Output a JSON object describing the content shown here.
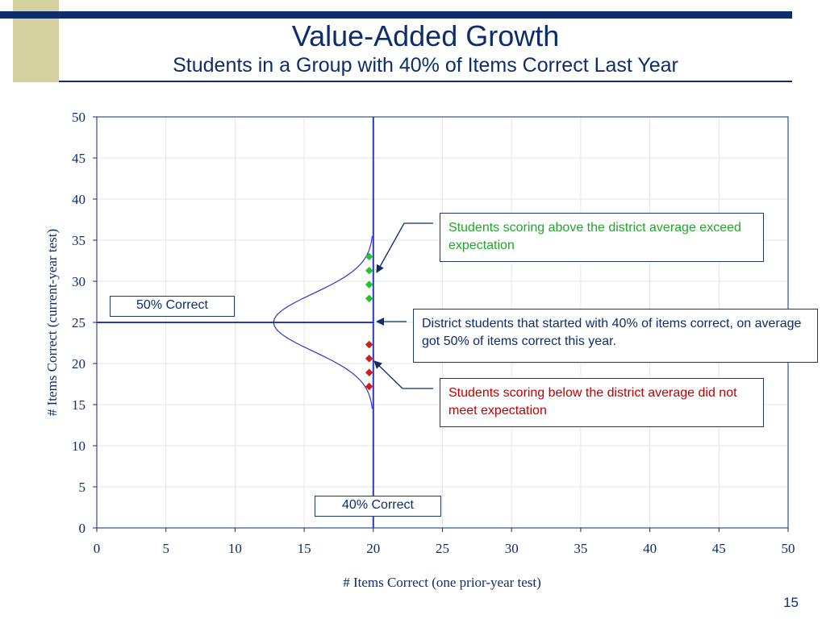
{
  "slide": {
    "title": "Value-Added Growth",
    "subtitle": "Students in a Group with 40% of Items Correct Last Year",
    "page_number": "15"
  },
  "colors": {
    "navy": "#0d2d6c",
    "accent_block": "#d5d0a0",
    "reference_line": "#2b35c8",
    "above_marker": "#22c42b",
    "below_marker": "#d01c1c",
    "above_text": "#22a52b",
    "below_text": "#c00000"
  },
  "chart_data": {
    "type": "scatter",
    "xlabel": "# Items Correct (one prior-year test)",
    "ylabel": "# Items Correct (current-year test)",
    "xlim": [
      0,
      50
    ],
    "ylim": [
      0,
      50
    ],
    "x_ticks": [
      0,
      5,
      10,
      15,
      20,
      25,
      30,
      35,
      40,
      45,
      50
    ],
    "y_ticks": [
      0,
      5,
      10,
      15,
      20,
      25,
      30,
      35,
      40,
      45,
      50
    ],
    "grid": true,
    "reference_lines": {
      "vertical_x": 20,
      "horizontal_y": 25
    },
    "distribution_curve": {
      "center_y": 25,
      "spread": 3.5,
      "peak_x_offset": 7.2,
      "anchor_x": 20
    },
    "series": [
      {
        "values": [
          {
            "x": 19.7,
            "y": 33
          },
          {
            "x": 19.7,
            "y": 31.3
          },
          {
            "x": 19.7,
            "y": 29.6
          },
          {
            "x": 19.7,
            "y": 27.9
          }
        ]
      },
      {
        "values": [
          {
            "x": 19.7,
            "y": 22.3
          },
          {
            "x": 19.7,
            "y": 20.6
          },
          {
            "x": 19.7,
            "y": 18.9
          },
          {
            "x": 19.7,
            "y": 17.2
          }
        ]
      }
    ]
  },
  "callouts": {
    "above": "Students scoring above the district average exceed expectation",
    "mid": "District students that started with 40% of items correct, on average got 50% of items correct this year.",
    "below": "Students scoring below the district average did not meet expectation",
    "label_50": "50% Correct",
    "label_40": "40% Correct"
  }
}
